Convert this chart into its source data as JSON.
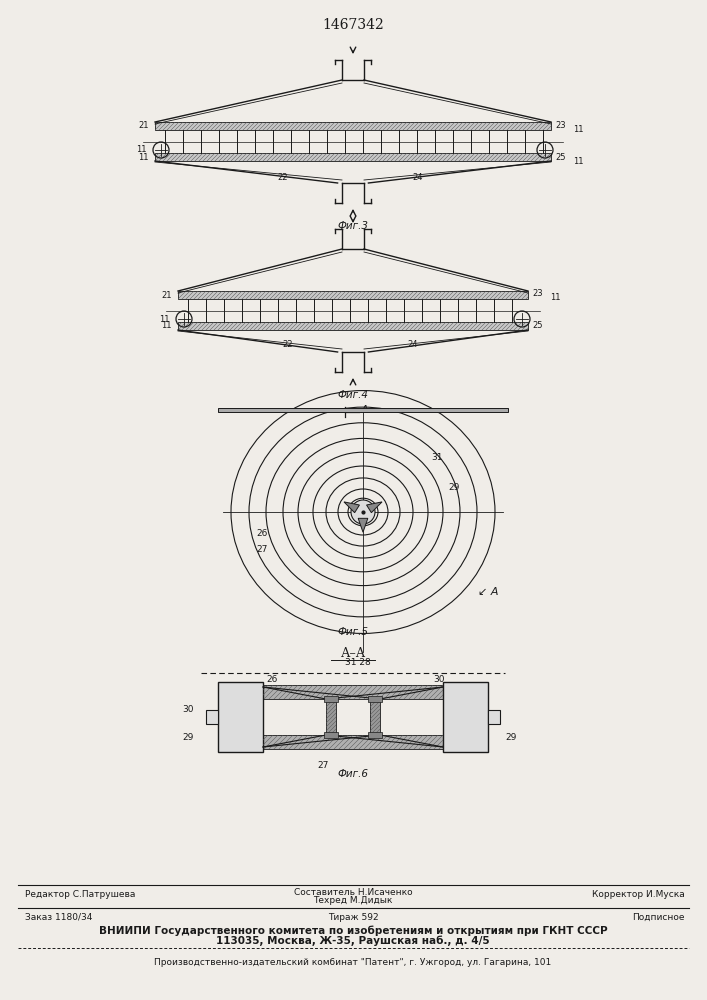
{
  "title": "1467342",
  "bg_color": "#f0ede8",
  "fig3_label": "Фиг.3",
  "fig4_label": "Фиг.4",
  "fig5_label": "Фиг.5",
  "fig6_label": "Фиг.6",
  "footer_line1_left": "Редактор С.Патрушева",
  "footer_line1_center_1": "Составитель Н.Исаченко",
  "footer_line1_center_2": "Техред М.Дидык",
  "footer_line1_right": "Корректор И.Муска",
  "footer_line2_left": "Заказ 1180/34",
  "footer_line2_center": "Тираж 592",
  "footer_line2_right": "Подписное",
  "footer_bold_1": "ВНИИПИ Государственного комитета по изобретениям и открытиям при ГКНТ СССР",
  "footer_bold_2": "113035, Москва, Ж-35, Раушская наб., д. 4/5",
  "footer_last": "Производственно-издательский комбинат \"Патент\", г. Ужгород, ул. Гагарина, 101"
}
